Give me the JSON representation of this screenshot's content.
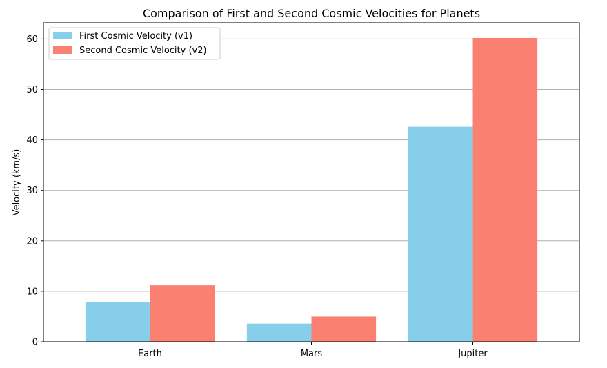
{
  "chart_data": {
    "type": "bar",
    "title": "Comparison of First and Second Cosmic Velocities for Planets",
    "xlabel": "",
    "ylabel": "Velocity (km/s)",
    "categories": [
      "Earth",
      "Mars",
      "Jupiter"
    ],
    "series": [
      {
        "name": "First Cosmic Velocity (v1)",
        "values": [
          7.9,
          3.6,
          42.6
        ],
        "color": "#87CEEB"
      },
      {
        "name": "Second Cosmic Velocity (v2)",
        "values": [
          11.2,
          5.0,
          60.2
        ],
        "color": "#FA8072"
      }
    ],
    "ylim": [
      0,
      63.2
    ],
    "yticks": [
      "0",
      "10",
      "20",
      "30",
      "40",
      "50",
      "60"
    ],
    "grid": "y-axis only",
    "legend_position": "top-left"
  }
}
